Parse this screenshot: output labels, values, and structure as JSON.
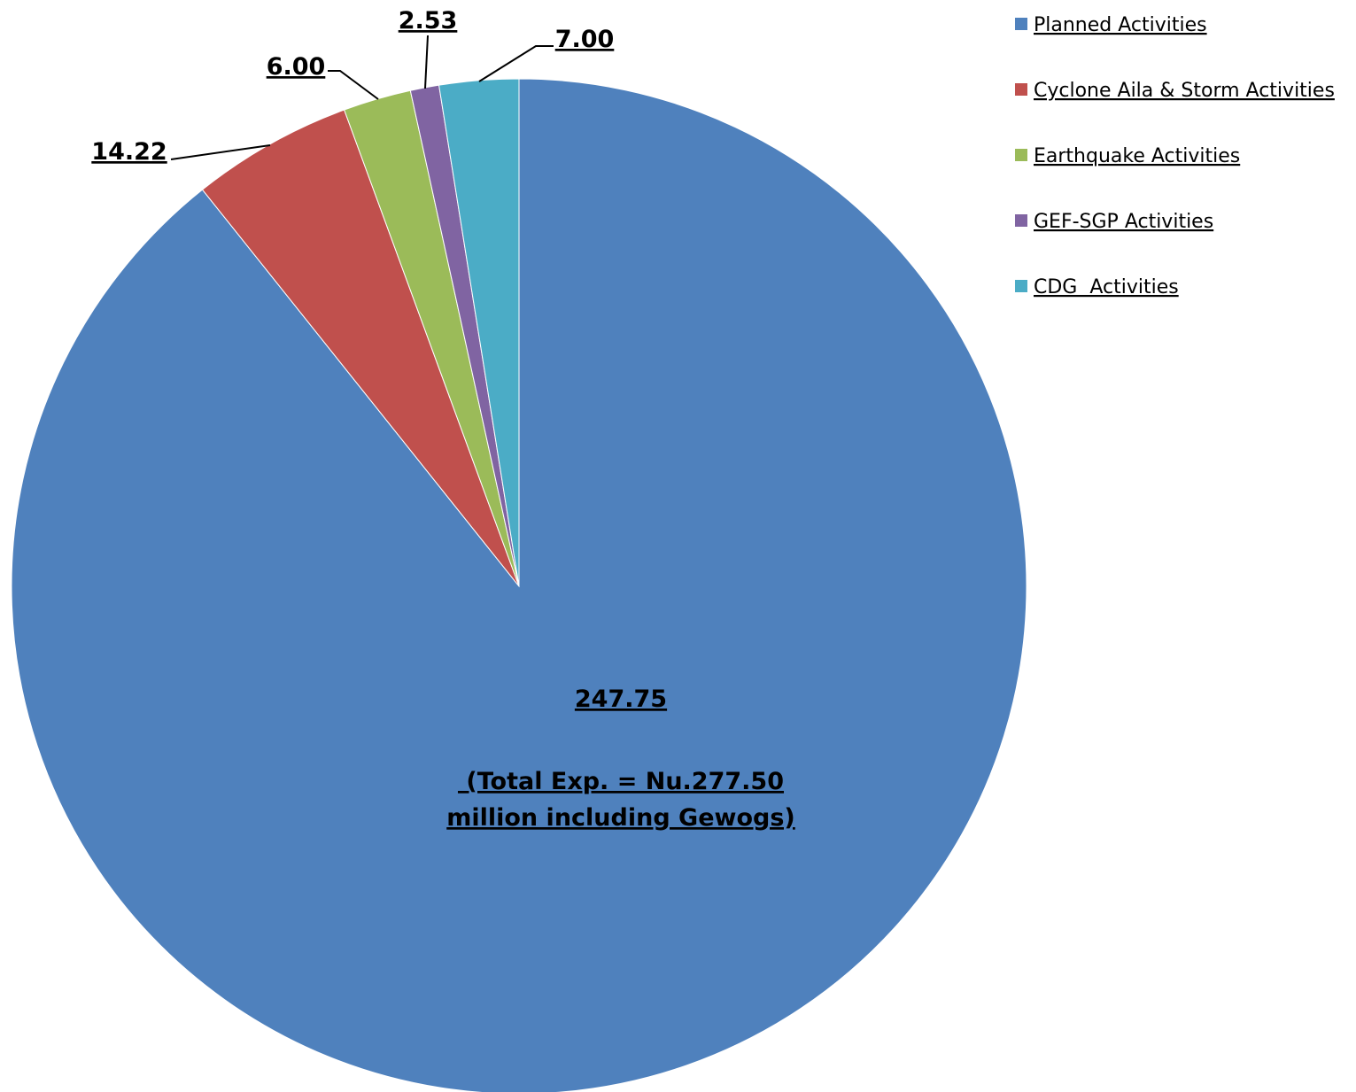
{
  "chart_data": {
    "type": "pie",
    "title": "",
    "categories": [
      "Planned Activities",
      "Cyclone Aila & Storm Activities",
      "Earthquake Activities",
      "GEF-SGP Activities",
      "CDG  Activities"
    ],
    "values": [
      247.75,
      14.22,
      6.0,
      2.53,
      7.0
    ],
    "data_labels": [
      "247.75",
      "14.22",
      "6.00",
      "2.53",
      "7.00"
    ],
    "colors": [
      "#4F81BD",
      "#C0504D",
      "#9BBB59",
      "#8064A2",
      "#4BACC6"
    ],
    "annotation": {
      "line1": " (Total Exp. = Nu.277.50",
      "line2": "million including Gewogs)"
    },
    "legend_position": "top-right",
    "start_angle": "12 o'clock",
    "direction": "clockwise"
  }
}
